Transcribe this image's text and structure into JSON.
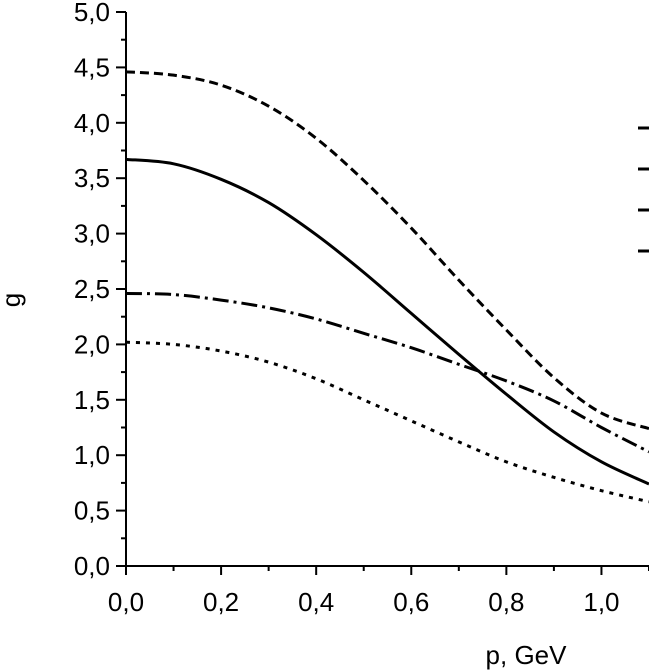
{
  "chart_data": {
    "type": "line",
    "title": "",
    "xlabel": "p, GeV",
    "ylabel": "g",
    "xlim": [
      0.0,
      1.1
    ],
    "ylim": [
      0.0,
      5.0
    ],
    "x_ticks": [
      "0,0",
      "0,2",
      "0,4",
      "0,6",
      "0,8",
      "1,0"
    ],
    "x_tick_values": [
      0.0,
      0.2,
      0.4,
      0.6,
      0.8,
      1.0
    ],
    "y_ticks": [
      "0,0",
      "0,5",
      "1,0",
      "1,5",
      "2,0",
      "2,5",
      "3,0",
      "3,5",
      "4,0",
      "4,5",
      "5,0"
    ],
    "y_tick_values": [
      0.0,
      0.5,
      1.0,
      1.5,
      2.0,
      2.5,
      3.0,
      3.5,
      4.0,
      4.5,
      5.0
    ],
    "grid": false,
    "series": [
      {
        "style": "dashed",
        "x": [
          0.0,
          0.1,
          0.2,
          0.3,
          0.4,
          0.5,
          0.6,
          0.7,
          0.8,
          0.9,
          1.0,
          1.1
        ],
        "y": [
          4.46,
          4.43,
          4.34,
          4.15,
          3.86,
          3.48,
          3.05,
          2.58,
          2.13,
          1.7,
          1.38,
          1.24
        ]
      },
      {
        "style": "solid",
        "x": [
          0.0,
          0.1,
          0.2,
          0.3,
          0.4,
          0.5,
          0.6,
          0.7,
          0.8,
          0.9,
          1.0,
          1.1
        ],
        "y": [
          3.67,
          3.63,
          3.49,
          3.28,
          2.99,
          2.65,
          2.28,
          1.91,
          1.55,
          1.21,
          0.94,
          0.74
        ]
      },
      {
        "style": "dash-dot",
        "x": [
          0.0,
          0.1,
          0.2,
          0.3,
          0.4,
          0.5,
          0.6,
          0.7,
          0.8,
          0.9,
          1.0,
          1.1
        ],
        "y": [
          2.46,
          2.45,
          2.4,
          2.33,
          2.23,
          2.1,
          1.97,
          1.82,
          1.67,
          1.49,
          1.25,
          1.03
        ]
      },
      {
        "style": "dotted",
        "x": [
          0.0,
          0.1,
          0.2,
          0.3,
          0.4,
          0.5,
          0.6,
          0.7,
          0.8,
          0.9,
          1.0,
          1.1
        ],
        "y": [
          2.02,
          2.0,
          1.94,
          1.84,
          1.69,
          1.5,
          1.31,
          1.12,
          0.94,
          0.8,
          0.68,
          0.58
        ]
      }
    ],
    "legend_markers": 4,
    "legend_position": "right"
  }
}
